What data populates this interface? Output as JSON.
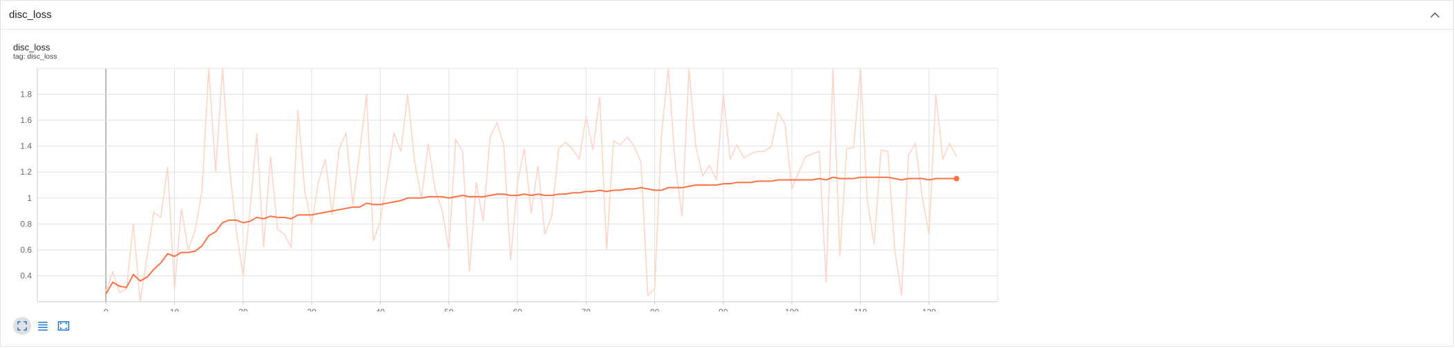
{
  "panel": {
    "title": "disc_loss",
    "collapse_icon": "chevron-up-icon"
  },
  "card": {
    "title": "disc_loss",
    "tag": "tag: disc_loss"
  },
  "toolbar": {
    "buttons": [
      {
        "icon": "fullscreen-icon",
        "active": true
      },
      {
        "icon": "list-icon",
        "active": false
      },
      {
        "icon": "fit-domain-icon",
        "active": false
      }
    ]
  },
  "colors": {
    "smoothed": "#ff7043",
    "raw": "#ffd4c7",
    "grid": "#e0e0e0",
    "tick_text": "#666666",
    "toolbar_icon": "#1976d2"
  },
  "chart_data": {
    "type": "line",
    "title": "",
    "xlabel": "",
    "ylabel": "",
    "xlim": [
      -10,
      130
    ],
    "ylim": [
      0.2,
      2.0
    ],
    "x_ticks": [
      0,
      10,
      20,
      30,
      40,
      50,
      60,
      70,
      80,
      90,
      100,
      110,
      120
    ],
    "x_tick_labels": [
      "0",
      "10",
      "20",
      "30",
      "40",
      "50",
      "60",
      "70",
      "80",
      "90",
      "100",
      "110",
      "120"
    ],
    "y_ticks": [
      0.4,
      0.6,
      0.8,
      1.0,
      1.2,
      1.4,
      1.6,
      1.8
    ],
    "y_tick_labels": [
      "0.4",
      "0.6",
      "0.8",
      "1",
      "1.2",
      "1.4",
      "1.6",
      "1.8"
    ],
    "grid": true,
    "legend": "none",
    "series": [
      {
        "role": "raw",
        "x": [
          0,
          1,
          2,
          3,
          4,
          5,
          6,
          7,
          8,
          9,
          10,
          11,
          12,
          13,
          14,
          15,
          16,
          17,
          18,
          19,
          20,
          21,
          22,
          23,
          24,
          25,
          26,
          27,
          28,
          29,
          30,
          31,
          32,
          33,
          34,
          35,
          36,
          37,
          38,
          39,
          40,
          41,
          42,
          43,
          44,
          45,
          46,
          47,
          48,
          49,
          50,
          51,
          52,
          53,
          54,
          55,
          56,
          57,
          58,
          59,
          60,
          61,
          62,
          63,
          64,
          65,
          66,
          67,
          68,
          69,
          70,
          71,
          72,
          73,
          74,
          75,
          76,
          77,
          78,
          79,
          80,
          81,
          82,
          83,
          84,
          85,
          86,
          87,
          88,
          89,
          90,
          91,
          92,
          93,
          94,
          95,
          96,
          97,
          98,
          99,
          100,
          101,
          102,
          103,
          104,
          105,
          106,
          107,
          108,
          109,
          110,
          111,
          112,
          113,
          114,
          115,
          116,
          117,
          118,
          119,
          120,
          121,
          122,
          123,
          124
        ],
        "values": [
          0.28,
          0.43,
          0.27,
          0.3,
          0.8,
          0.15,
          0.55,
          0.89,
          0.85,
          1.24,
          0.3,
          0.92,
          0.6,
          0.75,
          1.05,
          2.05,
          1.2,
          2.05,
          1.25,
          0.75,
          0.4,
          0.9,
          1.5,
          0.62,
          1.32,
          0.76,
          0.72,
          0.62,
          1.68,
          1.05,
          0.8,
          1.13,
          1.3,
          0.87,
          1.38,
          1.5,
          0.95,
          1.35,
          1.8,
          0.67,
          0.82,
          1.15,
          1.5,
          1.36,
          1.8,
          1.28,
          1.0,
          1.42,
          1.06,
          0.91,
          0.6,
          1.45,
          1.36,
          0.43,
          1.12,
          0.82,
          1.47,
          1.58,
          1.41,
          0.52,
          1.12,
          1.38,
          0.88,
          1.25,
          0.72,
          0.86,
          1.38,
          1.43,
          1.38,
          1.3,
          1.63,
          1.37,
          1.78,
          0.6,
          1.44,
          1.41,
          1.47,
          1.4,
          1.28,
          0.25,
          0.3,
          1.49,
          2.05,
          1.26,
          0.86,
          2.05,
          1.4,
          1.17,
          1.25,
          1.14,
          1.8,
          1.3,
          1.41,
          1.31,
          1.34,
          1.36,
          1.36,
          1.4,
          1.66,
          1.57,
          1.07,
          1.2,
          1.32,
          1.34,
          1.36,
          0.35,
          2.05,
          0.55,
          1.38,
          1.39,
          2.05,
          0.98,
          0.64,
          1.37,
          1.36,
          0.6,
          0.25,
          1.33,
          1.42,
          1.01,
          0.72,
          1.8,
          1.3,
          1.42,
          1.32
        ]
      },
      {
        "role": "smoothed",
        "x": [
          0,
          1,
          2,
          3,
          4,
          5,
          6,
          7,
          8,
          9,
          10,
          11,
          12,
          13,
          14,
          15,
          16,
          17,
          18,
          19,
          20,
          21,
          22,
          23,
          24,
          25,
          26,
          27,
          28,
          29,
          30,
          31,
          32,
          33,
          34,
          35,
          36,
          37,
          38,
          39,
          40,
          41,
          42,
          43,
          44,
          45,
          46,
          47,
          48,
          49,
          50,
          51,
          52,
          53,
          54,
          55,
          56,
          57,
          58,
          59,
          60,
          61,
          62,
          63,
          64,
          65,
          66,
          67,
          68,
          69,
          70,
          71,
          72,
          73,
          74,
          75,
          76,
          77,
          78,
          79,
          80,
          81,
          82,
          83,
          84,
          85,
          86,
          87,
          88,
          89,
          90,
          91,
          92,
          93,
          94,
          95,
          96,
          97,
          98,
          99,
          100,
          101,
          102,
          103,
          104,
          105,
          106,
          107,
          108,
          109,
          110,
          111,
          112,
          113,
          114,
          115,
          116,
          117,
          118,
          119,
          120,
          121,
          122,
          123,
          124
        ],
        "values": [
          0.26,
          0.35,
          0.32,
          0.31,
          0.41,
          0.36,
          0.39,
          0.45,
          0.5,
          0.57,
          0.55,
          0.58,
          0.58,
          0.59,
          0.63,
          0.71,
          0.74,
          0.81,
          0.83,
          0.83,
          0.81,
          0.82,
          0.85,
          0.84,
          0.86,
          0.85,
          0.85,
          0.84,
          0.87,
          0.87,
          0.87,
          0.88,
          0.89,
          0.9,
          0.91,
          0.92,
          0.93,
          0.93,
          0.96,
          0.95,
          0.95,
          0.96,
          0.97,
          0.98,
          1.0,
          1.0,
          1.0,
          1.01,
          1.01,
          1.01,
          1.0,
          1.01,
          1.02,
          1.01,
          1.01,
          1.01,
          1.02,
          1.03,
          1.03,
          1.02,
          1.02,
          1.03,
          1.02,
          1.03,
          1.02,
          1.02,
          1.03,
          1.03,
          1.04,
          1.04,
          1.05,
          1.05,
          1.06,
          1.05,
          1.06,
          1.06,
          1.07,
          1.07,
          1.08,
          1.07,
          1.06,
          1.06,
          1.08,
          1.08,
          1.08,
          1.09,
          1.1,
          1.1,
          1.1,
          1.1,
          1.11,
          1.11,
          1.12,
          1.12,
          1.12,
          1.13,
          1.13,
          1.13,
          1.14,
          1.14,
          1.14,
          1.14,
          1.14,
          1.14,
          1.15,
          1.14,
          1.16,
          1.15,
          1.15,
          1.15,
          1.16,
          1.16,
          1.16,
          1.16,
          1.16,
          1.15,
          1.14,
          1.15,
          1.15,
          1.15,
          1.14,
          1.15,
          1.15,
          1.15,
          1.15
        ]
      }
    ]
  }
}
